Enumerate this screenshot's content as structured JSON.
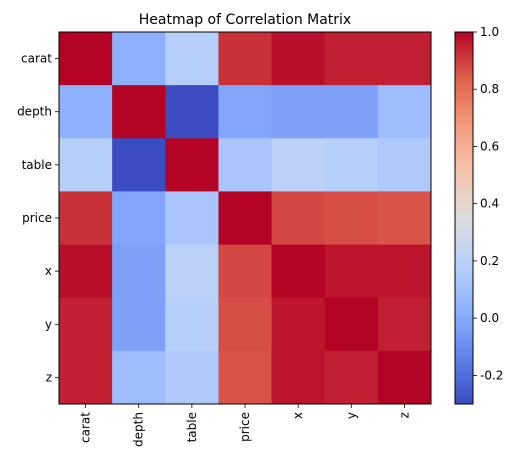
{
  "chart_data": {
    "type": "heatmap",
    "title": "Heatmap of Correlation Matrix",
    "row_labels": [
      "carat",
      "depth",
      "table",
      "price",
      "x",
      "y",
      "z"
    ],
    "col_labels": [
      "carat",
      "depth",
      "table",
      "price",
      "x",
      "y",
      "z"
    ],
    "values": [
      [
        1.0,
        0.03,
        0.18,
        0.92,
        0.98,
        0.95,
        0.95
      ],
      [
        0.03,
        1.0,
        -0.3,
        -0.01,
        -0.03,
        -0.03,
        0.09
      ],
      [
        0.18,
        -0.3,
        1.0,
        0.13,
        0.2,
        0.18,
        0.15
      ],
      [
        0.92,
        -0.01,
        0.13,
        1.0,
        0.88,
        0.87,
        0.86
      ],
      [
        0.98,
        -0.03,
        0.2,
        0.88,
        1.0,
        0.97,
        0.97
      ],
      [
        0.95,
        -0.03,
        0.18,
        0.87,
        0.97,
        1.0,
        0.95
      ],
      [
        0.95,
        0.09,
        0.15,
        0.86,
        0.97,
        0.95,
        1.0
      ]
    ],
    "colormap": "coolwarm",
    "vmin": -0.3,
    "vmax": 1.0,
    "colorbar_ticks": [
      "-0.2",
      "0.0",
      "0.2",
      "0.4",
      "0.6",
      "0.8",
      "1.0"
    ]
  }
}
